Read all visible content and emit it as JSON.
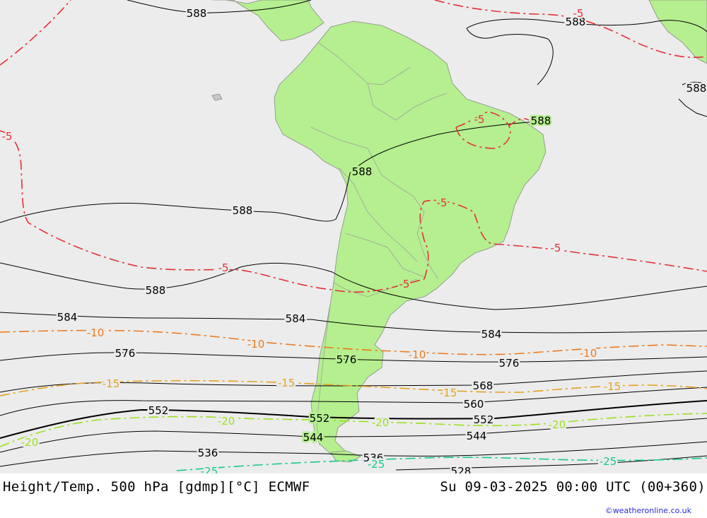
{
  "map": {
    "colors": {
      "ocean": "#ececec",
      "land": "#b5ef8f",
      "border": "#a0a0a0",
      "height_contour": "#000000",
      "temp_minus5": "#e8303a",
      "temp_minus10": "#f07a1e",
      "temp_minus15": "#e6a020",
      "temp_minus20": "#9be020",
      "temp_minus25": "#16c890"
    },
    "height_labels": [
      "588",
      "588",
      "588",
      "588",
      "588",
      "588",
      "588",
      "584",
      "584",
      "584",
      "576",
      "576",
      "576",
      "568",
      "560",
      "552",
      "552",
      "552",
      "544",
      "544",
      "536",
      "536",
      "528"
    ],
    "temp_labels": [
      "-5",
      "-5",
      "-5",
      "-5",
      "-5",
      "-5",
      "-5",
      "-10",
      "-10",
      "-10",
      "-10",
      "-15",
      "-15",
      "-15",
      "-15",
      "-20",
      "-20",
      "-20",
      "-20",
      "-25",
      "-25",
      "-25"
    ]
  },
  "footer": {
    "left": "Height/Temp. 500 hPa [gdmp][°C] ECMWF",
    "right": "Su 09-03-2025 00:00 UTC (00+360)",
    "credit": "©weatheronline.co.uk"
  }
}
